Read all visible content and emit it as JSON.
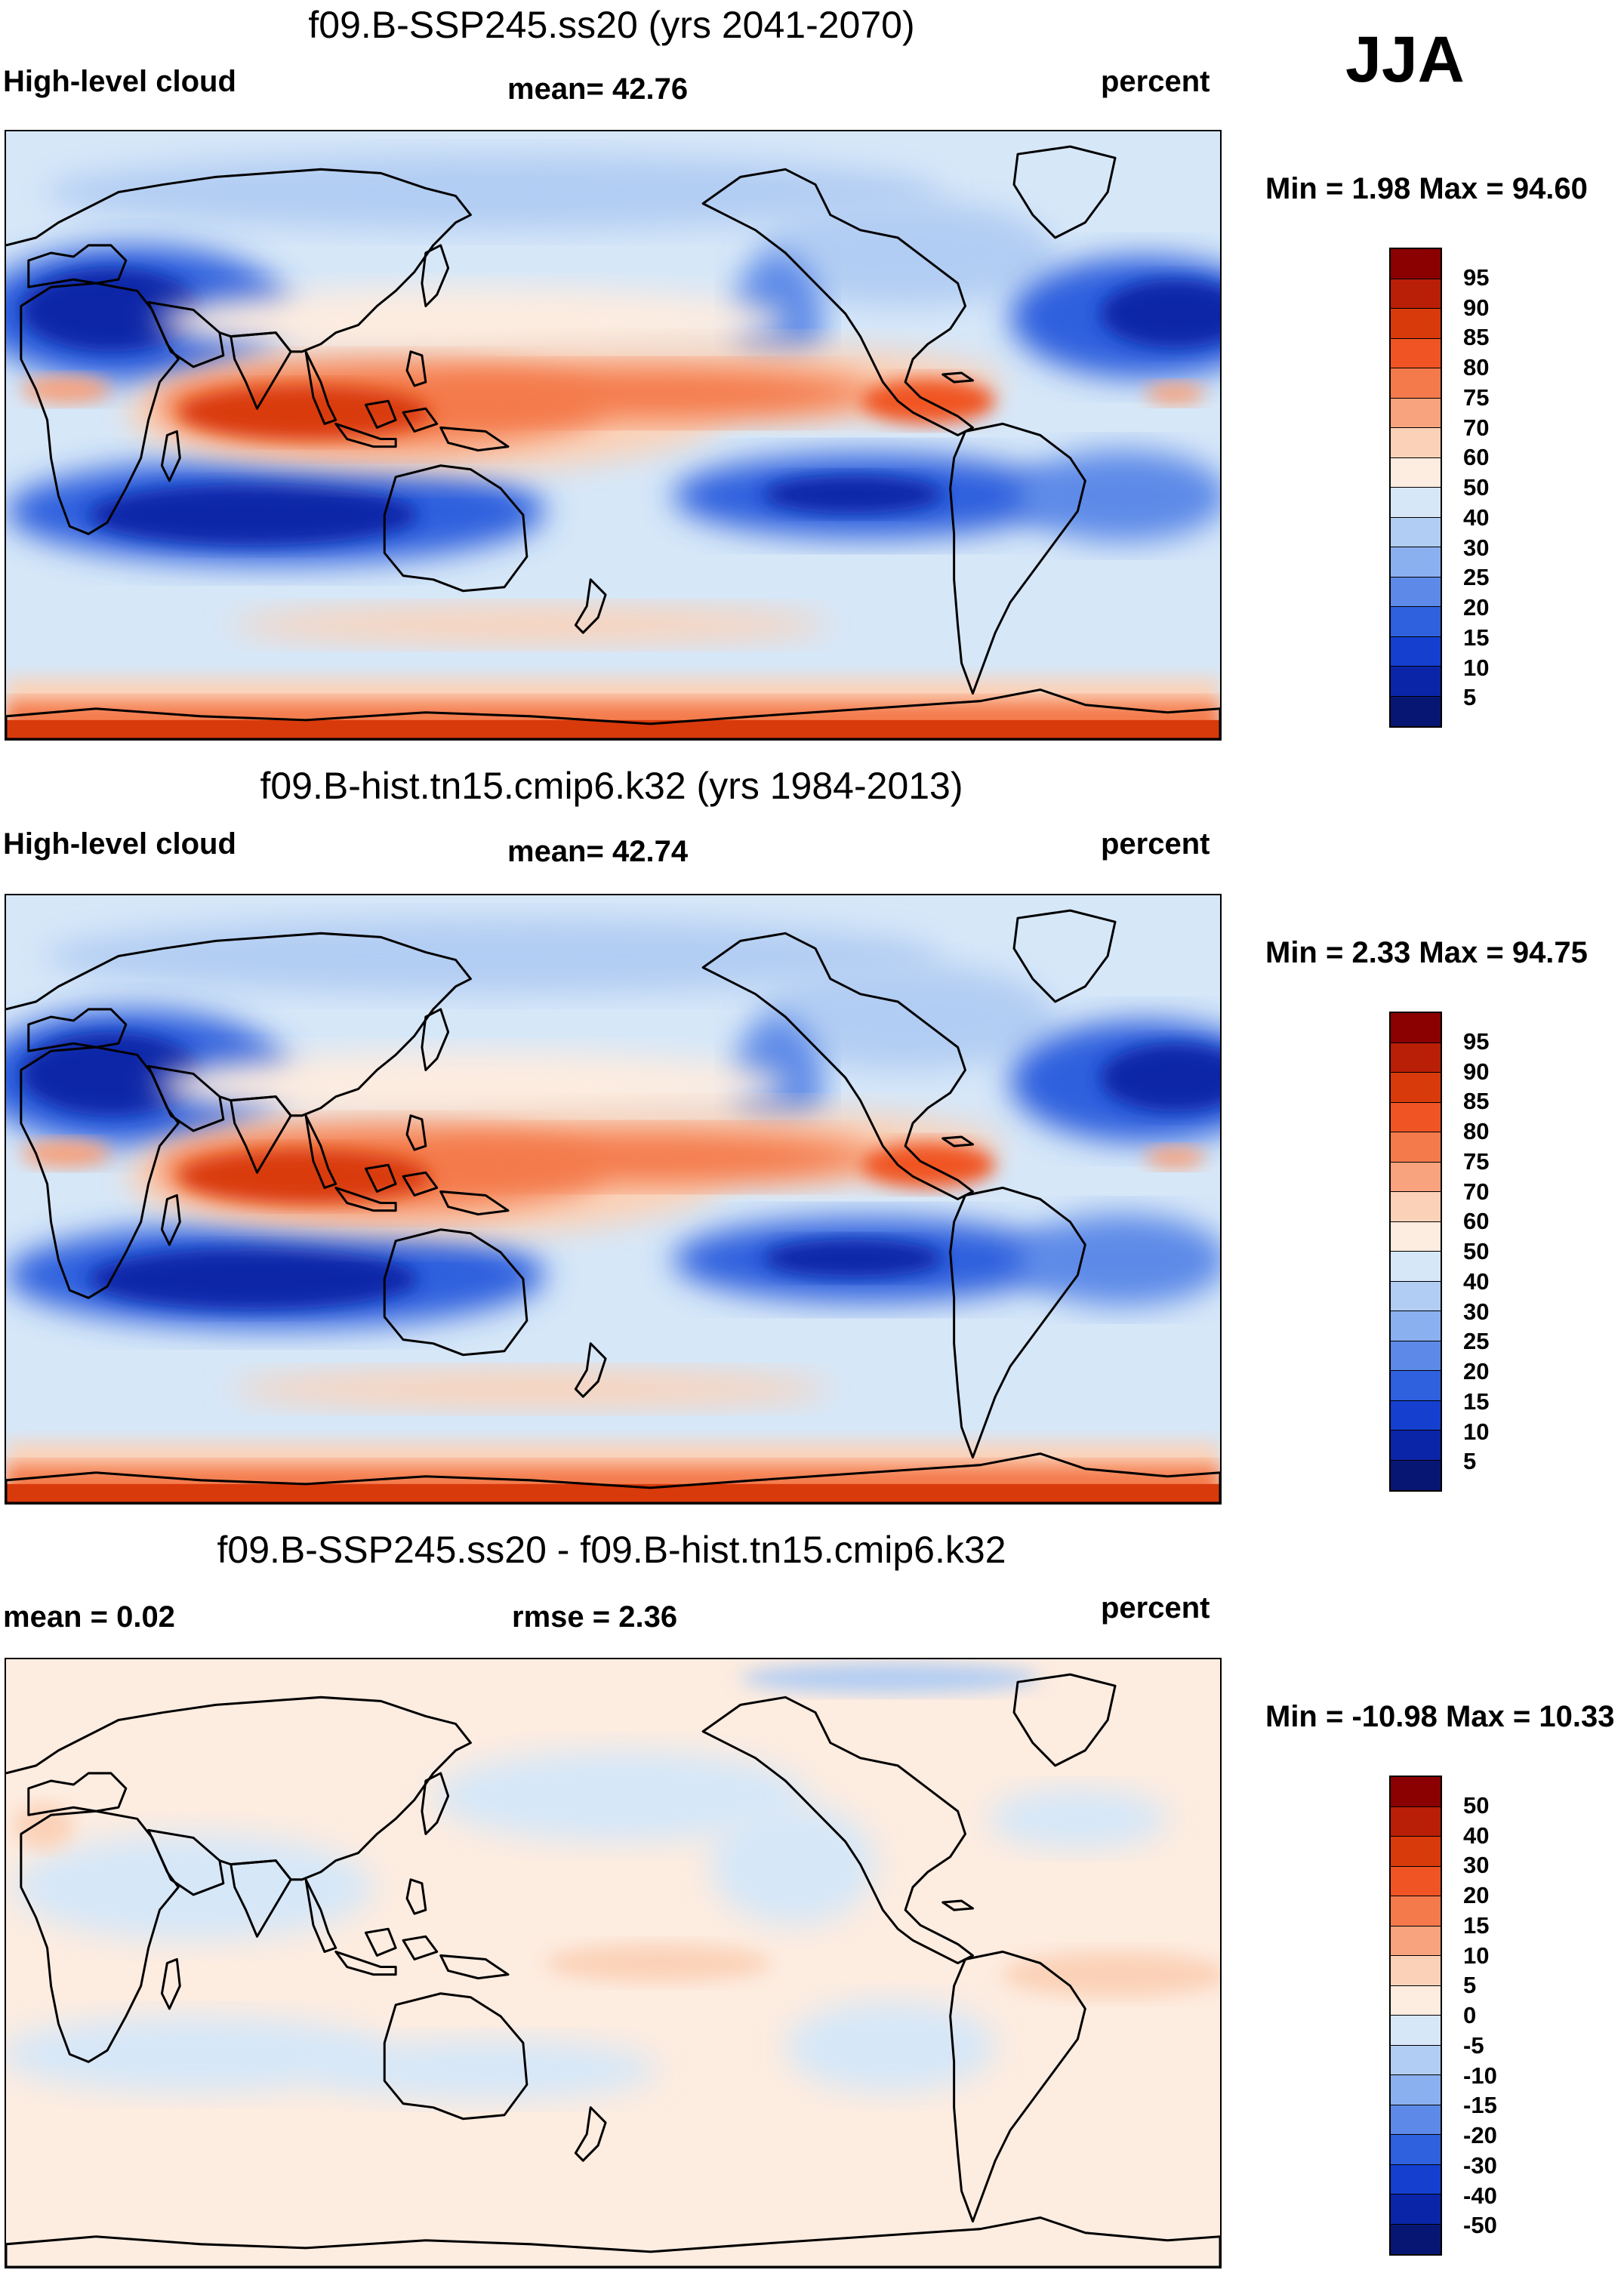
{
  "season": "JJA",
  "panels": [
    {
      "title": "f09.B-SSP245.ss20 (yrs 2041-2070)",
      "left_label": "High-level cloud",
      "center_label": "mean=  42.76",
      "right_label": "percent",
      "minmax": "Min =   1.98 Max =  94.60"
    },
    {
      "title": "f09.B-hist.tn15.cmip6.k32 (yrs 1984-2013)",
      "left_label": "High-level cloud",
      "center_label": "mean=  42.74",
      "right_label": "percent",
      "minmax": "Min =   2.33 Max =  94.75"
    },
    {
      "title": "f09.B-SSP245.ss20 - f09.B-hist.tn15.cmip6.k32",
      "left_label": "mean =   0.02",
      "center_label": "rmse =   2.36",
      "right_label": "percent",
      "minmax": "Min = -10.98 Max =  10.33"
    }
  ],
  "colorbars": {
    "absolute": {
      "labels": [
        "95",
        "90",
        "85",
        "80",
        "75",
        "70",
        "60",
        "50",
        "40",
        "30",
        "25",
        "20",
        "15",
        "10",
        "5"
      ],
      "colors": [
        "#8b0000",
        "#b81f06",
        "#d93a0c",
        "#f05424",
        "#f47a4c",
        "#f8a37d",
        "#fbd2b8",
        "#fdece0",
        "#d6e7f8",
        "#b2cdf3",
        "#8bb0ef",
        "#5d8ae8",
        "#2f61de",
        "#143fcf",
        "#0a25a8",
        "#081673"
      ]
    },
    "difference": {
      "labels": [
        "50",
        "40",
        "30",
        "20",
        "15",
        "10",
        "5",
        "0",
        "-5",
        "-10",
        "-15",
        "-20",
        "-30",
        "-40",
        "-50"
      ],
      "colors": [
        "#8b0000",
        "#b81f06",
        "#d93a0c",
        "#f05424",
        "#f47a4c",
        "#f8a37d",
        "#fbd2b8",
        "#fdece0",
        "#d6e7f8",
        "#b2cdf3",
        "#8bb0ef",
        "#5d8ae8",
        "#2f61de",
        "#143fcf",
        "#0a25a8",
        "#081673"
      ]
    }
  }
}
